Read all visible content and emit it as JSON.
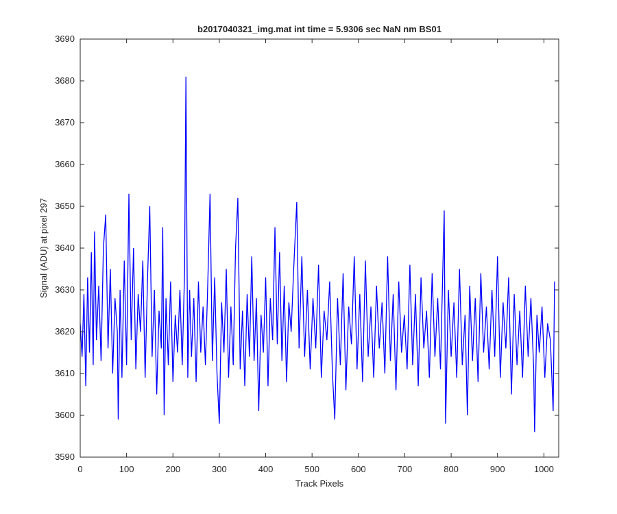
{
  "chart_data": {
    "type": "line",
    "title": "b2017040321_img.mat int time = 5.9306 sec  NaN nm BS01",
    "xlabel": "Track Pixels",
    "ylabel": "Signal (ADU) at pixel 297",
    "x": [
      0,
      4,
      8,
      12,
      16,
      20,
      24,
      28,
      31,
      35,
      40,
      45,
      50,
      55,
      60,
      65,
      70,
      75,
      80,
      82,
      86,
      90,
      95,
      100,
      105,
      110,
      115,
      120,
      125,
      130,
      135,
      140,
      145,
      150,
      155,
      160,
      165,
      170,
      175,
      178,
      181,
      185,
      190,
      195,
      200,
      205,
      210,
      215,
      220,
      225,
      228,
      232,
      236,
      240,
      245,
      250,
      255,
      260,
      265,
      270,
      275,
      280,
      285,
      290,
      295,
      300,
      305,
      310,
      315,
      320,
      325,
      330,
      335,
      340,
      345,
      350,
      355,
      360,
      365,
      370,
      375,
      380,
      385,
      390,
      395,
      400,
      405,
      410,
      415,
      420,
      425,
      430,
      435,
      440,
      445,
      450,
      455,
      460,
      467,
      472,
      478,
      484,
      490,
      496,
      502,
      508,
      514,
      520,
      526,
      532,
      538,
      544,
      549,
      555,
      561,
      567,
      573,
      579,
      585,
      591,
      597,
      603,
      609,
      615,
      621,
      627,
      633,
      639,
      645,
      651,
      657,
      663,
      669,
      675,
      681,
      687,
      693,
      699,
      705,
      711,
      717,
      723,
      729,
      735,
      741,
      747,
      753,
      759,
      765,
      771,
      777,
      785,
      788,
      794,
      800,
      806,
      812,
      818,
      824,
      830,
      835,
      840,
      846,
      852,
      858,
      864,
      870,
      876,
      882,
      888,
      894,
      900,
      906,
      912,
      918,
      924,
      930,
      936,
      942,
      948,
      954,
      960,
      966,
      972,
      978,
      980,
      985,
      990,
      996,
      1002,
      1008,
      1014,
      1020,
      1023
    ],
    "series": [
      {
        "name": "signal",
        "color": "#0000ff",
        "values": [
          3622,
          3614,
          3629,
          3607,
          3633,
          3615,
          3639,
          3612,
          3644,
          3618,
          3631,
          3613,
          3640,
          3648,
          3616,
          3635,
          3610,
          3628,
          3620,
          3599,
          3630,
          3609,
          3637,
          3612,
          3653,
          3618,
          3640,
          3611,
          3629,
          3620,
          3637,
          3609,
          3632,
          3650,
          3614,
          3630,
          3605,
          3625,
          3616,
          3645,
          3600,
          3628,
          3612,
          3632,
          3608,
          3624,
          3615,
          3630,
          3612,
          3634,
          3681,
          3609,
          3630,
          3614,
          3628,
          3608,
          3632,
          3615,
          3626,
          3612,
          3631,
          3653,
          3613,
          3633,
          3610,
          3598,
          3627,
          3615,
          3635,
          3609,
          3626,
          3612,
          3640,
          3652,
          3611,
          3625,
          3607,
          3629,
          3614,
          3638,
          3613,
          3628,
          3601,
          3624,
          3615,
          3633,
          3607,
          3628,
          3618,
          3645,
          3617,
          3639,
          3613,
          3631,
          3608,
          3627,
          3620,
          3634,
          3651,
          3616,
          3638,
          3614,
          3630,
          3611,
          3628,
          3616,
          3636,
          3609,
          3625,
          3618,
          3632,
          3610,
          3599,
          3628,
          3612,
          3634,
          3606,
          3626,
          3617,
          3638,
          3611,
          3629,
          3608,
          3637,
          3614,
          3626,
          3609,
          3631,
          3616,
          3627,
          3610,
          3638,
          3613,
          3629,
          3606,
          3632,
          3615,
          3624,
          3611,
          3636,
          3612,
          3629,
          3607,
          3633,
          3616,
          3625,
          3609,
          3634,
          3614,
          3628,
          3611,
          3649,
          3598,
          3630,
          3614,
          3627,
          3609,
          3635,
          3612,
          3624,
          3600,
          3631,
          3613,
          3628,
          3608,
          3634,
          3615,
          3626,
          3611,
          3630,
          3614,
          3638,
          3609,
          3627,
          3616,
          3633,
          3605,
          3629,
          3612,
          3625,
          3609,
          3631,
          3614,
          3628,
          3611,
          3596,
          3624,
          3615,
          3626,
          3609,
          3622,
          3618,
          3601,
          3632
        ]
      }
    ],
    "xlim": [
      0,
      1032
    ],
    "ylim": [
      3590,
      3690
    ],
    "xticks": [
      0,
      100,
      200,
      300,
      400,
      500,
      600,
      700,
      800,
      900,
      1000
    ],
    "yticks": [
      3590,
      3600,
      3610,
      3620,
      3630,
      3640,
      3650,
      3660,
      3670,
      3680,
      3690
    ]
  }
}
